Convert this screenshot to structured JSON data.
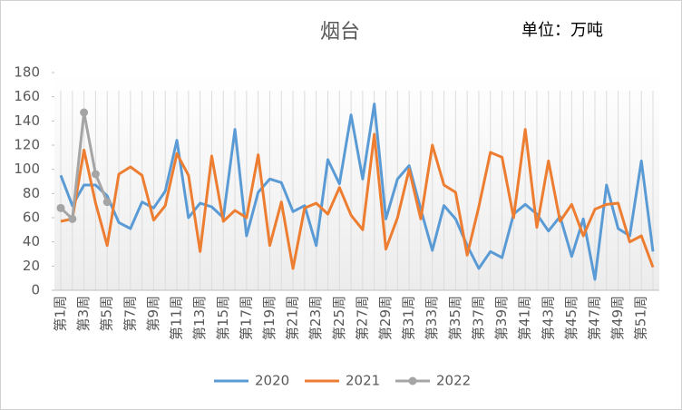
{
  "chart_data": {
    "type": "line",
    "title": "烟台",
    "annotation": "单位：万吨",
    "categories": [
      "第1周",
      null,
      "第3周",
      null,
      "第5周",
      null,
      "第7周",
      null,
      "第9周",
      null,
      "第11周",
      null,
      "第13周",
      null,
      "第15周",
      null,
      "第17周",
      null,
      "第19周",
      null,
      "第21周",
      null,
      "第23周",
      null,
      "第25周",
      null,
      "第27周",
      null,
      "第29周",
      null,
      "第31周",
      null,
      "第33周",
      null,
      "第35周",
      null,
      "第37周",
      null,
      "第39周",
      null,
      "第41周",
      null,
      "第43周",
      null,
      "第45周",
      null,
      "第47周",
      null,
      "第49周",
      null,
      "第51周",
      null
    ],
    "series": [
      {
        "name": "2020",
        "color": "#5b9bd5",
        "marker": false,
        "values": [
          95,
          70,
          87,
          87,
          78,
          56,
          51,
          73,
          68,
          82,
          124,
          60,
          72,
          69,
          60,
          133,
          45,
          81,
          92,
          89,
          65,
          70,
          37,
          108,
          88,
          145,
          92,
          154,
          59,
          92,
          103,
          67,
          33,
          70,
          59,
          37,
          18,
          32,
          27,
          63,
          71,
          63,
          49,
          61,
          28,
          59,
          9,
          87,
          51,
          45,
          107,
          32
        ]
      },
      {
        "name": "2021",
        "color": "#ed7d31",
        "marker": false,
        "values": [
          57,
          59,
          116,
          72,
          37,
          96,
          102,
          95,
          58,
          70,
          113,
          95,
          32,
          111,
          57,
          66,
          60,
          112,
          37,
          73,
          18,
          68,
          72,
          63,
          85,
          62,
          50,
          129,
          34,
          60,
          100,
          59,
          120,
          87,
          81,
          29,
          69,
          114,
          110,
          60,
          133,
          52,
          107,
          57,
          71,
          45,
          67,
          71,
          72,
          40,
          45,
          19
        ]
      },
      {
        "name": "2022",
        "color": "#a5a5a5",
        "marker": true,
        "values": [
          68,
          59,
          147,
          96,
          73,
          null,
          null,
          null,
          null,
          null,
          null,
          null,
          null,
          null,
          null,
          null,
          null,
          null,
          null,
          null,
          null,
          null,
          null,
          null,
          null,
          null,
          null,
          null,
          null,
          null,
          null,
          null,
          null,
          null,
          null,
          null,
          null,
          null,
          null,
          null,
          null,
          null,
          null,
          null,
          null,
          null,
          null,
          null,
          null,
          null,
          null,
          null
        ]
      }
    ],
    "ylim": [
      0,
      180
    ],
    "yticks": [
      0,
      20,
      40,
      60,
      80,
      100,
      120,
      140,
      160,
      180
    ],
    "legend": "bottom"
  }
}
